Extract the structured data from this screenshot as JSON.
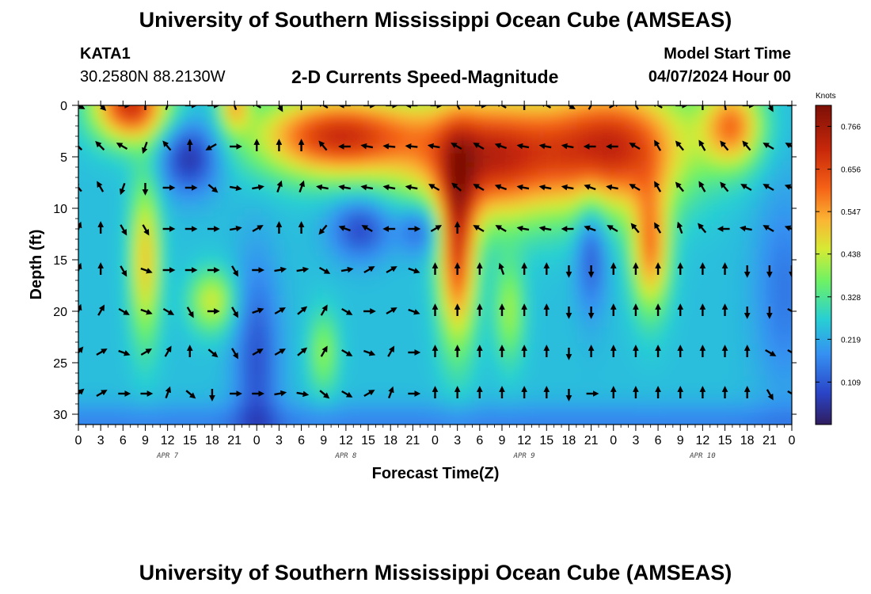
{
  "header": {
    "title": "University of Southern Mississippi Ocean Cube (AMSEAS)",
    "station": "KATA1",
    "coords": "30.2580N  88.2130W",
    "subtitle": "2-D Currents Speed-Magnitude",
    "model_start_label": "Model Start Time",
    "model_start_time": "04/07/2024 Hour 00"
  },
  "footer": {
    "title": "University of Southern Mississippi Ocean Cube (AMSEAS)"
  },
  "chart_data": {
    "type": "heatmap",
    "title": "2-D Currents Speed-Magnitude",
    "xlabel": "Forecast Time(Z)",
    "ylabel": "Depth (ft)",
    "x_tick_labels": [
      "0",
      "3",
      "6",
      "9",
      "12",
      "15",
      "18",
      "21",
      "0",
      "3",
      "6",
      "9",
      "12",
      "15",
      "18",
      "21",
      "0",
      "3",
      "6",
      "9",
      "12",
      "15",
      "18",
      "21",
      "0",
      "3",
      "6",
      "9",
      "12",
      "15",
      "18",
      "21",
      "0"
    ],
    "date_labels": [
      {
        "label": "APR 7",
        "hour": 12
      },
      {
        "label": "APR 8",
        "hour": 36
      },
      {
        "label": "APR 9",
        "hour": 60
      },
      {
        "label": "APR 10",
        "hour": 84
      }
    ],
    "x_range_hours": [
      0,
      96
    ],
    "y_ticks": [
      0,
      5,
      10,
      15,
      20,
      25,
      30
    ],
    "y_range_ft": [
      0,
      31
    ],
    "y_inverted": true,
    "colorbar": {
      "label": "Knots",
      "ticks": [
        "0.766",
        "0.656",
        "0.547",
        "0.438",
        "0.328",
        "0.219",
        "0.109"
      ],
      "range": [
        0.0,
        0.82
      ]
    },
    "arrow_times": [
      0,
      3,
      6,
      9,
      12,
      15,
      18,
      21,
      24,
      27,
      30,
      33,
      36,
      39,
      42,
      45,
      48,
      51,
      54,
      57,
      60,
      63,
      66,
      69,
      72,
      75,
      78,
      81,
      84,
      87,
      90,
      93,
      96
    ],
    "arrow_depths": [
      0,
      4,
      8,
      12,
      16,
      20,
      24,
      28
    ],
    "arrow_directions_deg": [
      [
        120,
        135,
        90,
        0,
        20,
        90,
        90,
        340,
        300,
        150,
        0,
        300,
        270,
        90,
        90,
        270,
        90,
        330,
        90,
        300,
        0,
        300,
        120,
        30,
        60,
        330,
        300,
        90,
        0,
        350,
        90,
        150,
        90
      ],
      [
        315,
        315,
        300,
        200,
        320,
        0,
        240,
        90,
        0,
        0,
        0,
        320,
        270,
        280,
        275,
        275,
        280,
        300,
        300,
        290,
        280,
        280,
        280,
        270,
        270,
        300,
        330,
        320,
        330,
        320,
        320,
        300,
        300
      ],
      [
        320,
        330,
        200,
        180,
        90,
        90,
        130,
        100,
        80,
        20,
        20,
        280,
        280,
        280,
        280,
        280,
        300,
        310,
        300,
        290,
        280,
        280,
        280,
        290,
        280,
        300,
        330,
        320,
        330,
        320,
        300,
        300,
        290
      ],
      [
        20,
        0,
        150,
        150,
        90,
        90,
        90,
        80,
        60,
        0,
        0,
        220,
        290,
        300,
        270,
        90,
        60,
        0,
        300,
        300,
        280,
        280,
        270,
        290,
        300,
        320,
        330,
        340,
        320,
        270,
        280,
        300,
        290
      ],
      [
        20,
        0,
        150,
        110,
        90,
        90,
        90,
        150,
        90,
        80,
        80,
        120,
        80,
        60,
        60,
        110,
        0,
        0,
        0,
        340,
        0,
        0,
        180,
        180,
        0,
        0,
        0,
        0,
        0,
        0,
        180,
        180,
        180
      ],
      [
        20,
        30,
        120,
        110,
        120,
        150,
        90,
        150,
        70,
        60,
        50,
        30,
        120,
        90,
        60,
        110,
        0,
        0,
        0,
        0,
        0,
        0,
        180,
        180,
        0,
        0,
        0,
        0,
        0,
        0,
        180,
        180,
        120
      ],
      [
        40,
        60,
        110,
        60,
        30,
        0,
        130,
        150,
        60,
        60,
        50,
        30,
        120,
        110,
        30,
        90,
        0,
        0,
        0,
        0,
        0,
        0,
        180,
        0,
        0,
        0,
        0,
        0,
        0,
        0,
        0,
        120,
        120
      ],
      [
        50,
        60,
        90,
        90,
        20,
        130,
        180,
        90,
        90,
        80,
        100,
        130,
        120,
        60,
        20,
        90,
        0,
        0,
        0,
        0,
        0,
        0,
        180,
        90,
        0,
        0,
        0,
        0,
        0,
        0,
        0,
        150,
        120
      ]
    ]
  }
}
